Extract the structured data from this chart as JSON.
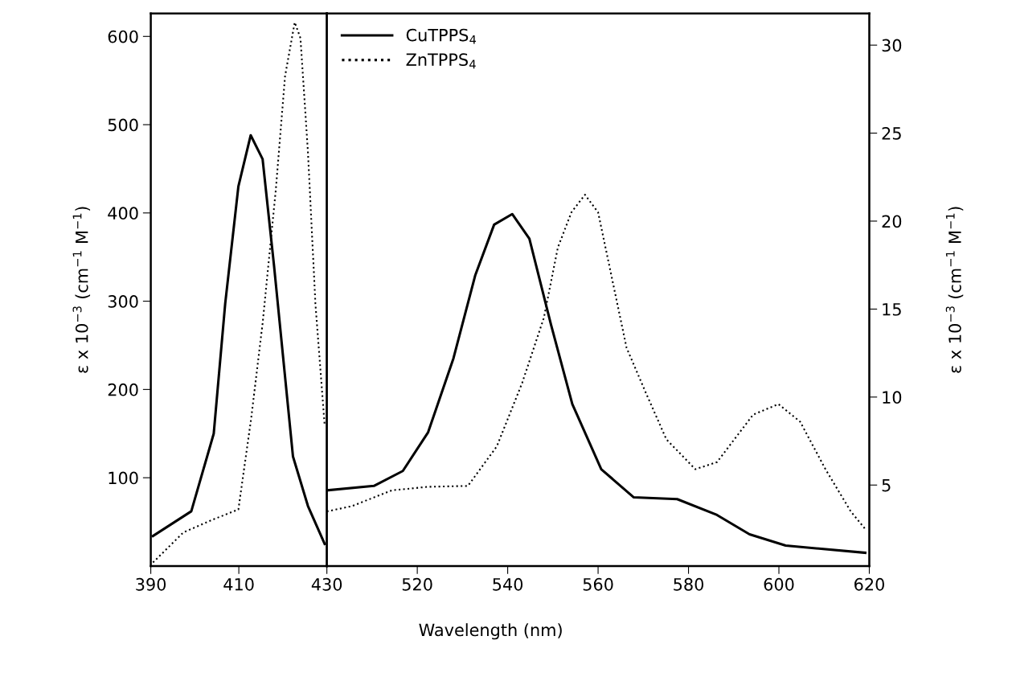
{
  "chart_data": [
    {
      "type": "line",
      "ylabel": "ε x 10$^{−3}$ (cm$^{−1}$ M$^{−1}$)",
      "xlim": [
        390,
        430
      ],
      "xticks": [
        390,
        410,
        430
      ],
      "ylim": [
        0,
        626
      ],
      "yticks": [
        100,
        200,
        300,
        400,
        500,
        600
      ],
      "grid": false,
      "legend": false,
      "series": [
        {
          "color": "#000000",
          "line_style": "solid",
          "x": [
            390.5,
            399.2,
            404.3,
            406.9,
            409.9,
            412.7,
            415.4,
            418,
            422.3,
            425.7,
            429.5
          ],
          "values": [
            34,
            62,
            150,
            297,
            430,
            488,
            461,
            340,
            124,
            68,
            25
          ]
        },
        {
          "color": "#000000",
          "line_style": "dotted",
          "x": [
            390.5,
            397.4,
            404.3,
            409.9,
            412.8,
            415.4,
            418.4,
            420.5,
            422.7,
            424,
            425.7,
            427.4,
            429.5
          ],
          "values": [
            4,
            38,
            53,
            64,
            167,
            275,
            426,
            555,
            616,
            598,
            469,
            297,
            159
          ]
        }
      ]
    },
    {
      "type": "line",
      "xlabel": "Wavelength (nm)",
      "y2label": "ε x 10$^{−3}$ (cm$^{−1}$ M$^{−1}$)",
      "xlim": [
        500,
        620
      ],
      "xticks": [
        520,
        540,
        560,
        580,
        600,
        620
      ],
      "y2lim": [
        0.4,
        31.8
      ],
      "y2ticks": [
        5,
        10,
        15,
        20,
        25,
        30
      ],
      "grid": false,
      "legend": "top left",
      "series": [
        {
          "name": "CuTPPS$_{4}$",
          "color": "#000000",
          "line_style": "solid",
          "axis": "y2",
          "x": [
            500,
            510.4,
            516.8,
            522.4,
            528,
            532.8,
            537,
            541,
            544.8,
            549.6,
            554.3,
            560.7,
            567.9,
            577.5,
            586.3,
            593.5,
            601.5,
            619.1
          ],
          "values": [
            4.7,
            4.95,
            5.8,
            8.0,
            12.2,
            16.9,
            19.8,
            20.4,
            19.0,
            14.1,
            9.6,
            5.9,
            4.3,
            4.2,
            3.3,
            2.2,
            1.56,
            1.15
          ]
        },
        {
          "name": "ZnTPPS$_{4}$",
          "color": "#000000",
          "line_style": "dotted",
          "axis": "y2",
          "x": [
            500,
            505.5,
            514.4,
            522.4,
            531.2,
            537.6,
            543.2,
            548,
            551.1,
            554.1,
            557.1,
            560,
            566.3,
            570.3,
            575.1,
            581.5,
            586.3,
            594.3,
            599.9,
            604.7,
            610.3,
            615.9,
            619.1
          ],
          "values": [
            3.5,
            3.8,
            4.7,
            4.9,
            4.95,
            7.2,
            10.8,
            14.5,
            18.5,
            20.5,
            21.5,
            20.5,
            12.8,
            10.4,
            7.6,
            5.9,
            6.3,
            9.0,
            9.6,
            8.6,
            5.9,
            3.5,
            2.5
          ]
        }
      ]
    }
  ]
}
